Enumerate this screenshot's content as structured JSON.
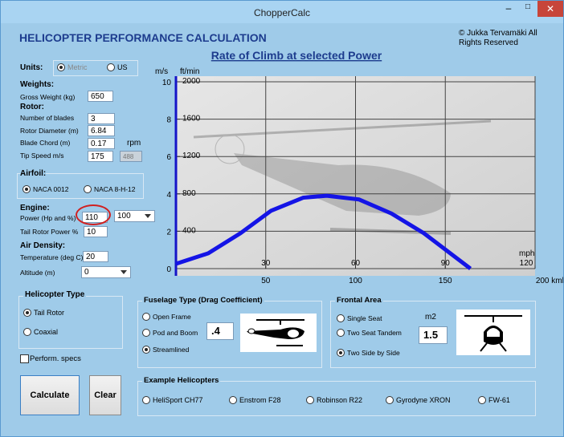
{
  "window": {
    "title": "ChopperCalc"
  },
  "header": {
    "title": "HELICOPTER PERFORMANCE CALCULATION",
    "copyright": "© Jukka Tervamäki All Rights Reserved"
  },
  "units": {
    "label": "Units:",
    "options": [
      "Metric",
      "US"
    ]
  },
  "weights": {
    "heading": "Weights:",
    "gross_weight": {
      "label": "Gross Weight (kg)",
      "value": "650"
    }
  },
  "rotor": {
    "heading": "Rotor:",
    "blades": {
      "label": "Number of blades",
      "value": "3"
    },
    "diameter": {
      "label": "Rotor Diameter (m)",
      "value": "6.84"
    },
    "chord": {
      "label": "Blade Chord (m)",
      "value": "0.17"
    },
    "rpm_label": "rpm",
    "tip_speed": {
      "label": "Tip Speed m/s",
      "value": "175"
    },
    "rpm_value": "488"
  },
  "airfoil": {
    "heading": "Airfoil:",
    "options": [
      "NACA 0012",
      "NACA 8-H-12"
    ]
  },
  "engine": {
    "heading": "Engine:",
    "power": {
      "label": "Power (Hp and %)",
      "value": "110"
    },
    "power_percent": "100",
    "tail_rotor": {
      "label": "Tail Rotor Power %",
      "value": "10"
    }
  },
  "air_density": {
    "heading": "Air Density:",
    "temperature": {
      "label": "Temperature (deg C)",
      "value": "20"
    },
    "altitude": {
      "label": "Altitude (m)",
      "value": "0"
    }
  },
  "helicopter_type": {
    "title": "Helicopter Type",
    "options": [
      "Tail Rotor",
      "Coaxial"
    ]
  },
  "perform_specs": "Perform. specs",
  "buttons": [
    "Calculate",
    "Clear"
  ],
  "fuselage": {
    "title": "Fuselage Type (Drag Coefficient)",
    "options": [
      "Open Frame",
      "Pod and Boom",
      "Streamlined"
    ],
    "value": ".4"
  },
  "frontal_area": {
    "title": "Frontal Area",
    "options": [
      "Single Seat",
      "Two Seat Tandem",
      "Two Side by Side"
    ],
    "unit": "m2",
    "value": "1.5"
  },
  "examples": {
    "title": "Example Helicopters",
    "options": [
      "HeliSport CH77",
      "Enstrom F28",
      "Robinson R22",
      "Gyrodyne XRON",
      "FW-61"
    ]
  },
  "chart_data": {
    "type": "line",
    "title": "Rate of Climb at selected Power",
    "y_label": "m/s",
    "y2_label": "ft/min",
    "x2_label": "mph",
    "x": [
      0,
      18,
      36,
      53,
      71,
      84,
      102,
      120,
      138,
      151,
      164
    ],
    "values": [
      0.26,
      0.82,
      1.9,
      3.1,
      3.8,
      3.9,
      3.7,
      2.95,
      1.9,
      0.95,
      0
    ],
    "color": "#1414e6",
    "xlim": [
      0,
      200
    ],
    "xticks": [
      50,
      100,
      150,
      {
        "value": 200,
        "label": "200 kmh"
      }
    ],
    "x2lim": [
      0,
      120
    ],
    "x2ticks": [
      30,
      60,
      90,
      120
    ],
    "ylim": [
      0,
      10
    ],
    "yticks": [
      0,
      2,
      4,
      6,
      8,
      10
    ],
    "y2lim": [
      0,
      2000
    ],
    "y2ticks": [
      400,
      800,
      1200,
      1600,
      2000
    ],
    "grid": true
  }
}
